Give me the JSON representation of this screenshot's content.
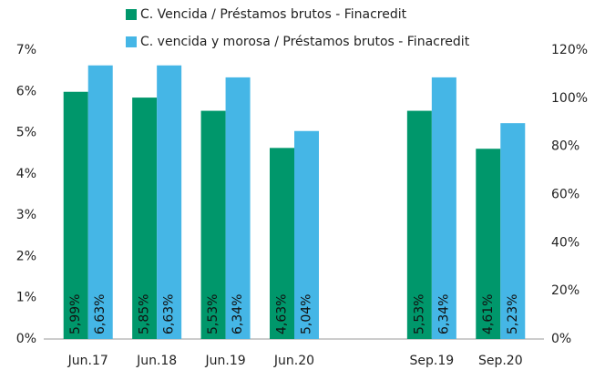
{
  "chart_data": {
    "type": "bar",
    "categories": [
      "Jun.17",
      "Jun.18",
      "Jun.19",
      "Jun.20",
      null,
      "Sep.19",
      "Sep.20"
    ],
    "series": [
      {
        "name": "C. Vencida / Préstamos brutos - Finacredit",
        "color": "#00976b",
        "values": [
          5.99,
          5.85,
          5.53,
          4.63,
          null,
          5.53,
          4.61
        ],
        "value_labels": [
          "5,99%",
          "5,85%",
          "5,53%",
          "4,63%",
          null,
          "5,53%",
          "4,61%"
        ]
      },
      {
        "name": "C. vencida y morosa / Préstamos brutos - Finacredit",
        "color": "#45b6e6",
        "values": [
          6.63,
          6.63,
          6.34,
          5.04,
          null,
          6.34,
          5.23
        ],
        "value_labels": [
          "6,63%",
          "6,63%",
          "6,34%",
          "5,04%",
          null,
          "6,34%",
          "5,23%"
        ]
      }
    ],
    "ylim": [
      0,
      7
    ],
    "yticks": [
      {
        "value": 0,
        "label": "0%"
      },
      {
        "value": 1,
        "label": "1%"
      },
      {
        "value": 2,
        "label": "2%"
      },
      {
        "value": 3,
        "label": "3%"
      },
      {
        "value": 4,
        "label": "4%"
      },
      {
        "value": 5,
        "label": "5%"
      },
      {
        "value": 6,
        "label": "6%"
      },
      {
        "value": 7,
        "label": "7%"
      }
    ],
    "y2lim": [
      0,
      120
    ],
    "y2ticks": [
      {
        "value": 0,
        "label": "0%"
      },
      {
        "value": 20,
        "label": "20%"
      },
      {
        "value": 40,
        "label": "40%"
      },
      {
        "value": 60,
        "label": "60%"
      },
      {
        "value": 80,
        "label": "80%"
      },
      {
        "value": 100,
        "label": "100%"
      },
      {
        "value": 120,
        "label": "120%"
      }
    ],
    "legend": "top"
  }
}
